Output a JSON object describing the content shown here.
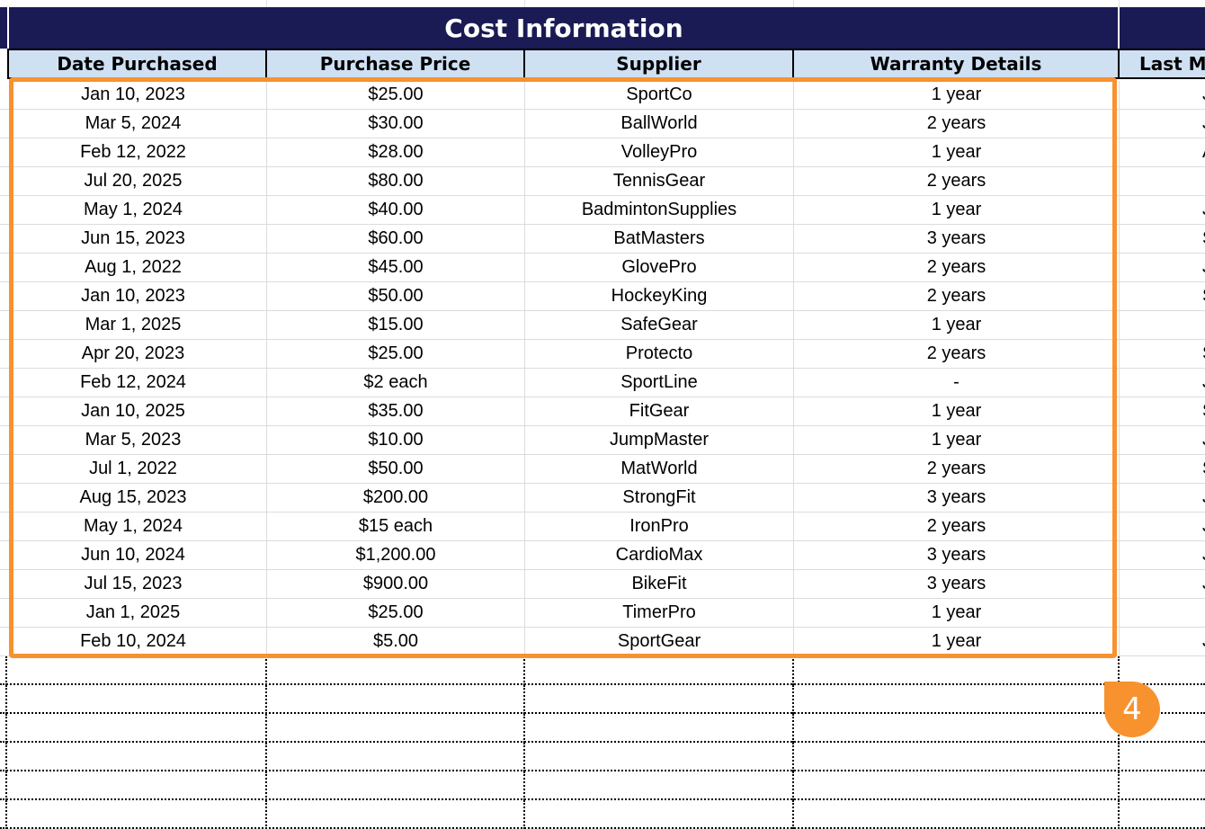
{
  "section": {
    "title": "Cost Information"
  },
  "columns": {
    "date": "Date Purchased",
    "price": "Purchase Price",
    "supplier": "Supplier",
    "warranty": "Warranty Details",
    "lastm": "Last M"
  },
  "rows": [
    {
      "date": "Jan 10, 2023",
      "price": "$25.00",
      "supplier": "SportCo",
      "warranty": "1 year",
      "lastm": "J"
    },
    {
      "date": "Mar 5, 2024",
      "price": "$30.00",
      "supplier": "BallWorld",
      "warranty": "2 years",
      "lastm": "J"
    },
    {
      "date": "Feb 12, 2022",
      "price": "$28.00",
      "supplier": "VolleyPro",
      "warranty": "1 year",
      "lastm": "A"
    },
    {
      "date": "Jul 20, 2025",
      "price": "$80.00",
      "supplier": "TennisGear",
      "warranty": "2 years",
      "lastm": ""
    },
    {
      "date": "May 1, 2024",
      "price": "$40.00",
      "supplier": "BadmintonSupplies",
      "warranty": "1 year",
      "lastm": "J"
    },
    {
      "date": "Jun 15, 2023",
      "price": "$60.00",
      "supplier": "BatMasters",
      "warranty": "3 years",
      "lastm": "S"
    },
    {
      "date": "Aug 1, 2022",
      "price": "$45.00",
      "supplier": "GlovePro",
      "warranty": "2 years",
      "lastm": "J"
    },
    {
      "date": "Jan 10, 2023",
      "price": "$50.00",
      "supplier": "HockeyKing",
      "warranty": "2 years",
      "lastm": "S"
    },
    {
      "date": "Mar 1, 2025",
      "price": "$15.00",
      "supplier": "SafeGear",
      "warranty": "1 year",
      "lastm": ""
    },
    {
      "date": "Apr 20, 2023",
      "price": "$25.00",
      "supplier": "Protecto",
      "warranty": "2 years",
      "lastm": "S"
    },
    {
      "date": "Feb 12, 2024",
      "price": "$2 each",
      "supplier": "SportLine",
      "warranty": "-",
      "lastm": "J"
    },
    {
      "date": "Jan 10, 2025",
      "price": "$35.00",
      "supplier": "FitGear",
      "warranty": "1 year",
      "lastm": "S"
    },
    {
      "date": "Mar 5, 2023",
      "price": "$10.00",
      "supplier": "JumpMaster",
      "warranty": "1 year",
      "lastm": "J"
    },
    {
      "date": "Jul 1, 2022",
      "price": "$50.00",
      "supplier": "MatWorld",
      "warranty": "2 years",
      "lastm": "S"
    },
    {
      "date": "Aug 15, 2023",
      "price": "$200.00",
      "supplier": "StrongFit",
      "warranty": "3 years",
      "lastm": "J"
    },
    {
      "date": "May 1, 2024",
      "price": "$15 each",
      "supplier": "IronPro",
      "warranty": "2 years",
      "lastm": "J"
    },
    {
      "date": "Jun 10, 2024",
      "price": "$1,200.00",
      "supplier": "CardioMax",
      "warranty": "3 years",
      "lastm": "J"
    },
    {
      "date": "Jul 15, 2023",
      "price": "$900.00",
      "supplier": "BikeFit",
      "warranty": "3 years",
      "lastm": "J"
    },
    {
      "date": "Jan 1, 2025",
      "price": "$25.00",
      "supplier": "TimerPro",
      "warranty": "1 year",
      "lastm": ""
    },
    {
      "date": "Feb 10, 2024",
      "price": "$5.00",
      "supplier": "SportGear",
      "warranty": "1 year",
      "lastm": "J"
    }
  ],
  "highlight": {
    "badge_label": "4",
    "color": "#f7922f"
  },
  "colors": {
    "header_bg": "#1a1a55",
    "colheader_bg": "#cfe0f3"
  }
}
